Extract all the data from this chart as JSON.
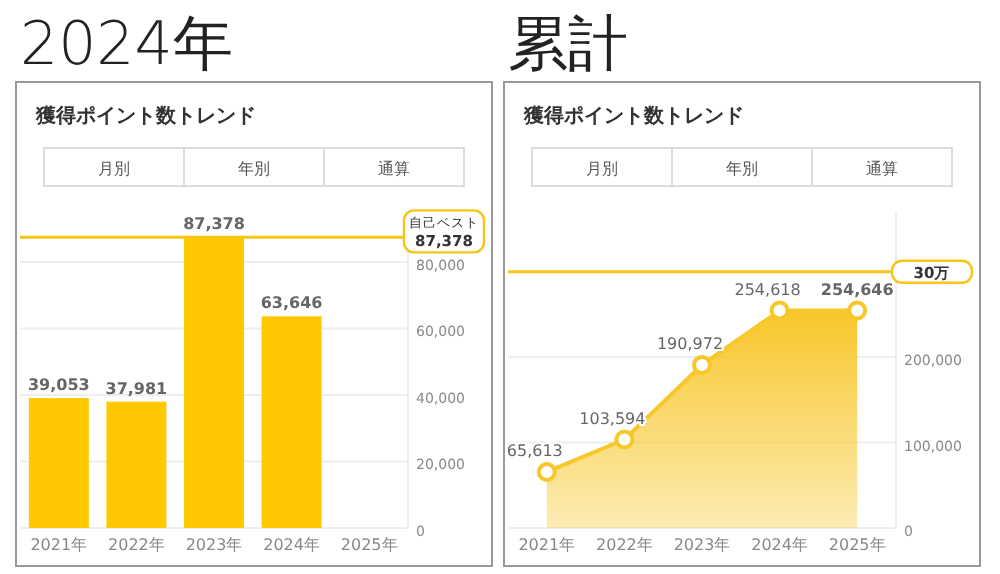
{
  "chart_data": [
    {
      "type": "bar",
      "title": "2024年",
      "subtitle": "獲得ポイント数トレンド",
      "annotations": [
        "月別",
        "年別",
        "通算"
      ],
      "categories": [
        "2021年",
        "2022年",
        "2023年",
        "2024年",
        "2025年"
      ],
      "values": [
        39053,
        37981,
        87378,
        63646,
        null
      ],
      "value_labels": [
        "39,053",
        "37,981",
        "87,378",
        "63,646",
        null
      ],
      "color": "#ffc800",
      "ylim": [
        0,
        95000
      ],
      "yticks": [
        0,
        {
          "value": 20000,
          "label": "20,000"
        },
        {
          "value": 40000,
          "label": "40,000"
        },
        {
          "value": 60000,
          "label": "60,000"
        },
        {
          "value": 80000,
          "label": "80,000"
        }
      ],
      "grid": "y",
      "ref_lines": [
        {
          "axis": "y",
          "value": 87378,
          "label": "自己ベスト\n87,378",
          "color": "#f5c518"
        }
      ]
    },
    {
      "type": "area",
      "title": "累計",
      "subtitle": "獲得ポイント数トレンド",
      "annotations": [
        "月別",
        "年別",
        "通算"
      ],
      "categories": [
        "2021年",
        "2022年",
        "2023年",
        "2024年",
        "2025年"
      ],
      "values": [
        65613,
        103594,
        190972,
        254618,
        254646
      ],
      "value_labels": [
        "65,613",
        "103,594",
        "190,972",
        "254,618",
        "254,646"
      ],
      "color": "#f8c72a",
      "marker": "circle",
      "ylim": [
        0,
        370000
      ],
      "yticks": [
        0,
        {
          "value": 100000,
          "label": "100,000"
        },
        {
          "value": 200000,
          "label": "200,000"
        }
      ],
      "grid": "y",
      "ref_lines": [
        {
          "axis": "y",
          "value": 300000,
          "label": "30万",
          "color": "#f5c518"
        }
      ]
    }
  ]
}
